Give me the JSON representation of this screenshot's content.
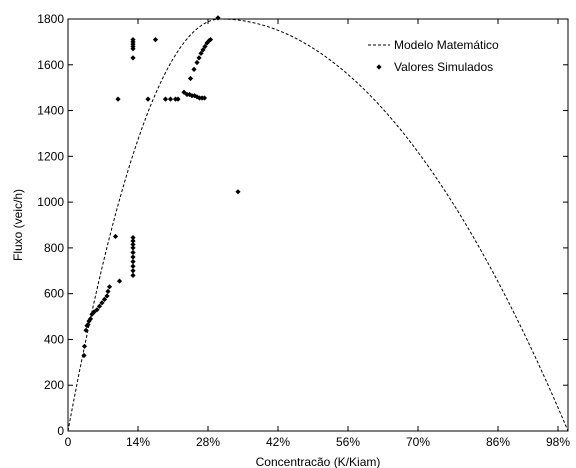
{
  "chart_data": {
    "type": "scatter",
    "xlabel": "Concentracão (K/Kiam)",
    "ylabel": "Fluxo (veic/h)",
    "xlim": [
      0,
      100
    ],
    "ylim": [
      0,
      1800
    ],
    "x_ticks": [
      {
        "value": 0,
        "label": "0"
      },
      {
        "value": 14,
        "label": "14%"
      },
      {
        "value": 28,
        "label": "28%"
      },
      {
        "value": 42,
        "label": "42%"
      },
      {
        "value": 56,
        "label": "56%"
      },
      {
        "value": 70,
        "label": "70%"
      },
      {
        "value": 86,
        "label": "86%"
      },
      {
        "value": 98,
        "label": "98%"
      }
    ],
    "y_ticks": [
      0,
      200,
      400,
      600,
      800,
      1000,
      1200,
      1400,
      1600,
      1800
    ],
    "grid": false,
    "legend_position": "top-right",
    "series": [
      {
        "name": "Modelo Matemático",
        "style": "dashed-line",
        "color": "#000000",
        "model": {
          "qmax": 1800,
          "x_peak": 30.5,
          "x_jam": 100
        }
      },
      {
        "name": "Valores Simulados",
        "style": "diamond-markers",
        "color": "#000000",
        "points": [
          [
            3.2,
            330
          ],
          [
            3.3,
            370
          ],
          [
            3.6,
            440
          ],
          [
            3.8,
            460
          ],
          [
            4.0,
            465
          ],
          [
            4.2,
            480
          ],
          [
            4.5,
            490
          ],
          [
            4.8,
            510
          ],
          [
            5.2,
            520
          ],
          [
            5.8,
            530
          ],
          [
            6.3,
            545
          ],
          [
            6.8,
            560
          ],
          [
            7.3,
            575
          ],
          [
            7.8,
            590
          ],
          [
            8.0,
            610
          ],
          [
            8.3,
            630
          ],
          [
            9.5,
            850
          ],
          [
            10.0,
            1450
          ],
          [
            10.3,
            655
          ],
          [
            13.0,
            680
          ],
          [
            13.0,
            700
          ],
          [
            13.0,
            720
          ],
          [
            13.0,
            740
          ],
          [
            13.0,
            760
          ],
          [
            13.0,
            780
          ],
          [
            13.0,
            800
          ],
          [
            13.0,
            815
          ],
          [
            13.0,
            830
          ],
          [
            13.0,
            845
          ],
          [
            13.0,
            1630
          ],
          [
            13.0,
            1670
          ],
          [
            13.0,
            1680
          ],
          [
            13.0,
            1690
          ],
          [
            13.0,
            1700
          ],
          [
            13.0,
            1710
          ],
          [
            16.0,
            1450
          ],
          [
            17.5,
            1710
          ],
          [
            19.5,
            1450
          ],
          [
            20.5,
            1450
          ],
          [
            21.5,
            1450
          ],
          [
            22.0,
            1450
          ],
          [
            23.2,
            1480
          ],
          [
            23.8,
            1470
          ],
          [
            24.3,
            1470
          ],
          [
            24.8,
            1465
          ],
          [
            25.3,
            1465
          ],
          [
            25.8,
            1460
          ],
          [
            26.3,
            1455
          ],
          [
            26.8,
            1455
          ],
          [
            27.3,
            1455
          ],
          [
            24.5,
            1540
          ],
          [
            25.2,
            1580
          ],
          [
            25.8,
            1610
          ],
          [
            26.2,
            1630
          ],
          [
            26.6,
            1650
          ],
          [
            27.0,
            1665
          ],
          [
            27.4,
            1680
          ],
          [
            27.8,
            1695
          ],
          [
            28.2,
            1705
          ],
          [
            28.5,
            1710
          ],
          [
            30.0,
            1805
          ],
          [
            34.0,
            1045
          ]
        ]
      }
    ]
  }
}
